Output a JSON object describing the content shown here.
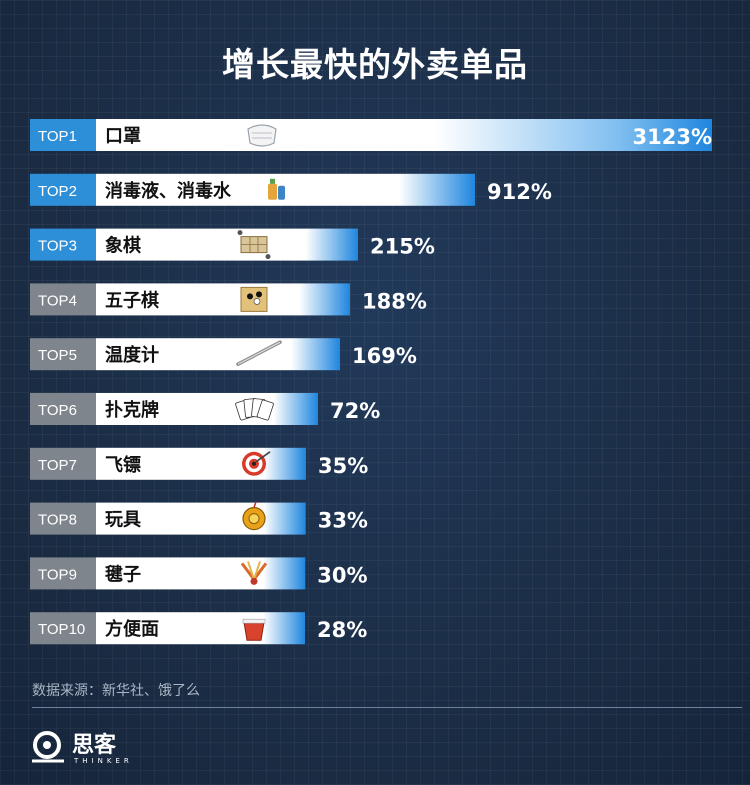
{
  "title": "增长最快的外卖单品",
  "source": "数据来源：新华社、饿了么",
  "logo": {
    "text": "思客",
    "sub": "THINKER"
  },
  "chart_data": {
    "type": "bar",
    "orientation": "horizontal",
    "ranks": [
      "TOP1",
      "TOP2",
      "TOP3",
      "TOP4",
      "TOP5",
      "TOP6",
      "TOP7",
      "TOP8",
      "TOP9",
      "TOP10"
    ],
    "categories": [
      "口罩",
      "消毒液、消毒水",
      "象棋",
      "五子棋",
      "温度计",
      "扑克牌",
      "飞镖",
      "玩具",
      "毽子",
      "方便面"
    ],
    "values": [
      3123,
      912,
      215,
      188,
      169,
      72,
      35,
      33,
      30,
      28
    ],
    "value_labels": [
      "3123%",
      "912%",
      "215%",
      "188%",
      "169%",
      "72%",
      "35%",
      "33%",
      "30%",
      "28%"
    ],
    "icons": [
      "mask-icon",
      "disinfectant-icon",
      "chess-icon",
      "gomoku-icon",
      "thermometer-icon",
      "playing-cards-icon",
      "dart-board-icon",
      "yoyo-toy-icon",
      "shuttlecock-icon",
      "instant-noodles-icon"
    ],
    "colors": {
      "rank_top": "#2d8fd8",
      "rank_other": "#7f858c",
      "bar_accent": "#1f86de",
      "bar_base": "#ffffff"
    }
  }
}
